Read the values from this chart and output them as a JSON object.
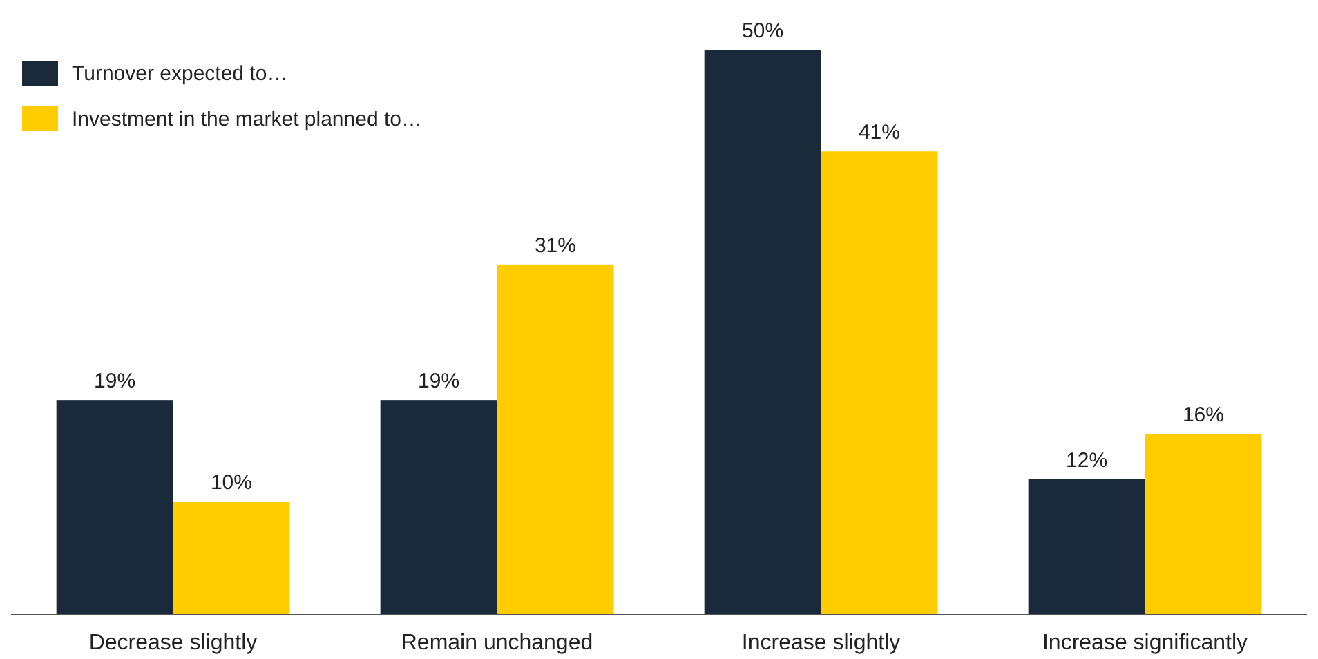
{
  "chart_data": {
    "type": "bar",
    "categories": [
      "Decrease slightly",
      "Remain unchanged",
      "Increase slightly",
      "Increase significantly"
    ],
    "series": [
      {
        "name": "Turnover expected to…",
        "color": "#1b2a3b",
        "values": [
          19,
          19,
          50,
          12
        ],
        "value_labels": [
          "19%",
          "19%",
          "50%",
          "12%"
        ]
      },
      {
        "name": "Investment in the market planned to…",
        "color": "#ffcc00",
        "values": [
          10,
          31,
          41,
          16
        ],
        "value_labels": [
          "10%",
          "31%",
          "41%",
          "16%"
        ]
      }
    ],
    "legend": "top left"
  }
}
